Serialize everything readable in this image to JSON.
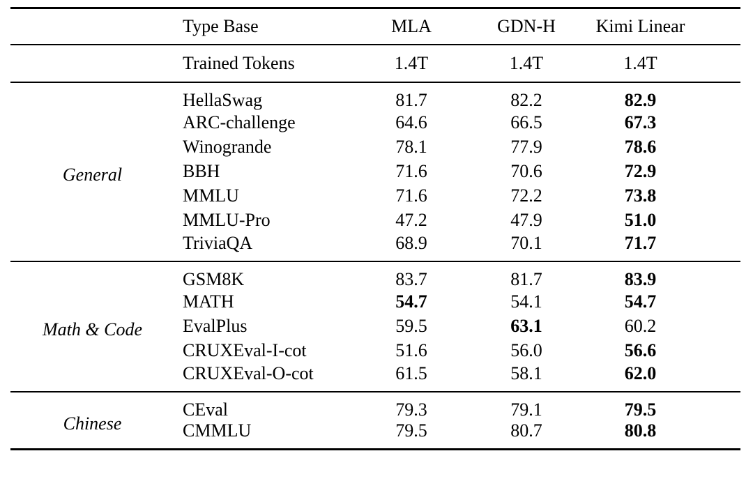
{
  "colors": {
    "background": "#ffffff",
    "text": "#000000",
    "rule": "#000000"
  },
  "table": {
    "header": {
      "group_col": "",
      "name_col": "Type Base",
      "model_cols": [
        "MLA",
        "GDN-H",
        "Kimi Linear"
      ]
    },
    "meta_row": {
      "name": "Trained Tokens",
      "values": [
        "1.4T",
        "1.4T",
        "1.4T"
      ],
      "bold": [
        false,
        false,
        false
      ]
    },
    "sections": [
      {
        "group": "General",
        "rows": [
          {
            "name": "HellaSwag",
            "values": [
              "81.7",
              "82.2",
              "82.9"
            ],
            "bold": [
              false,
              false,
              true
            ]
          },
          {
            "name": "ARC-challenge",
            "values": [
              "64.6",
              "66.5",
              "67.3"
            ],
            "bold": [
              false,
              false,
              true
            ]
          },
          {
            "name": "Winogrande",
            "values": [
              "78.1",
              "77.9",
              "78.6"
            ],
            "bold": [
              false,
              false,
              true
            ]
          },
          {
            "name": "BBH",
            "values": [
              "71.6",
              "70.6",
              "72.9"
            ],
            "bold": [
              false,
              false,
              true
            ]
          },
          {
            "name": "MMLU",
            "values": [
              "71.6",
              "72.2",
              "73.8"
            ],
            "bold": [
              false,
              false,
              true
            ]
          },
          {
            "name": "MMLU-Pro",
            "values": [
              "47.2",
              "47.9",
              "51.0"
            ],
            "bold": [
              false,
              false,
              true
            ]
          },
          {
            "name": "TriviaQA",
            "values": [
              "68.9",
              "70.1",
              "71.7"
            ],
            "bold": [
              false,
              false,
              true
            ]
          }
        ]
      },
      {
        "group": "Math & Code",
        "rows": [
          {
            "name": "GSM8K",
            "values": [
              "83.7",
              "81.7",
              "83.9"
            ],
            "bold": [
              false,
              false,
              true
            ]
          },
          {
            "name": "MATH",
            "values": [
              "54.7",
              "54.1",
              "54.7"
            ],
            "bold": [
              true,
              false,
              true
            ]
          },
          {
            "name": "EvalPlus",
            "values": [
              "59.5",
              "63.1",
              "60.2"
            ],
            "bold": [
              false,
              true,
              false
            ]
          },
          {
            "name": "CRUXEval-I-cot",
            "values": [
              "51.6",
              "56.0",
              "56.6"
            ],
            "bold": [
              false,
              false,
              true
            ]
          },
          {
            "name": "CRUXEval-O-cot",
            "values": [
              "61.5",
              "58.1",
              "62.0"
            ],
            "bold": [
              false,
              false,
              true
            ]
          }
        ]
      },
      {
        "group": "Chinese",
        "rows": [
          {
            "name": "CEval",
            "values": [
              "79.3",
              "79.1",
              "79.5"
            ],
            "bold": [
              false,
              false,
              true
            ]
          },
          {
            "name": "CMMLU",
            "values": [
              "79.5",
              "80.7",
              "80.8"
            ],
            "bold": [
              false,
              false,
              true
            ]
          }
        ]
      }
    ]
  }
}
